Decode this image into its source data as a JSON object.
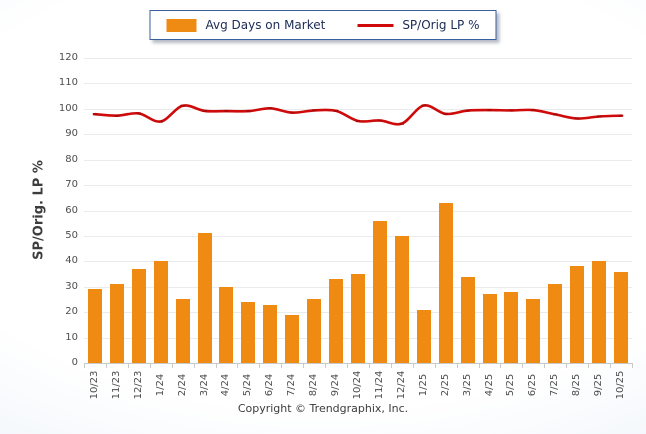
{
  "legend": {
    "bar_label": "Avg Days on Market",
    "line_label": "SP/Orig LP %"
  },
  "axes": {
    "y_title": "SP/Orig. LP %",
    "y_min": 0,
    "y_max": 120,
    "y_step": 10
  },
  "footer": {
    "copyright": "Copyright © Trendgraphix, Inc."
  },
  "colors": {
    "bar": "#EF8A13",
    "line": "#CE0A0A",
    "line_marker": "#B00808",
    "grid": "#EBEBEB",
    "axis": "#C9C9C9",
    "tick_text": "#4D4D4D",
    "legend_border": "#3A5F9F"
  },
  "chart_data": {
    "type": "bar",
    "subtype": "bar+line combo",
    "categories": [
      "10/23",
      "11/23",
      "12/23",
      "1/24",
      "2/24",
      "3/24",
      "4/24",
      "5/24",
      "6/24",
      "7/24",
      "8/24",
      "9/24",
      "10/24",
      "11/24",
      "12/24",
      "1/25",
      "2/25",
      "3/25",
      "4/25",
      "5/25",
      "6/25",
      "7/25",
      "8/25",
      "9/25",
      "10/25"
    ],
    "series": [
      {
        "name": "Avg Days on Market",
        "type": "bar",
        "color": "#EF8A13",
        "values": [
          29,
          31,
          37,
          40,
          25,
          51,
          30,
          24,
          23,
          19,
          25,
          33,
          35,
          56,
          50,
          21,
          63,
          34,
          27,
          28,
          25,
          31,
          38,
          40,
          36
        ]
      },
      {
        "name": "SP/Orig LP %",
        "type": "line",
        "color": "#CE0A0A",
        "values": [
          97.9,
          97.3,
          98.2,
          95.0,
          101.2,
          99.2,
          99.1,
          99.1,
          100.2,
          98.5,
          99.4,
          99.2,
          95.2,
          95.4,
          94.2,
          101.3,
          98.0,
          99.3,
          99.5,
          99.4,
          99.5,
          97.8,
          96.2,
          97.0,
          97.3
        ]
      }
    ],
    "title": "",
    "xlabel": "",
    "ylabel": "SP/Orig. LP %",
    "ylim": [
      0,
      120
    ],
    "grid": true,
    "legend_position": "top-center"
  }
}
